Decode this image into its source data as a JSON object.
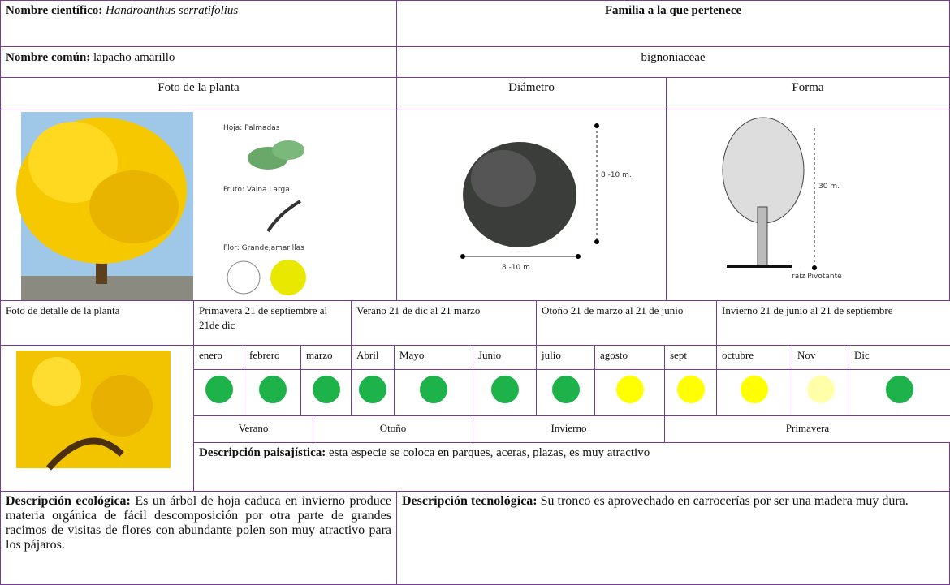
{
  "header": {
    "scientific_label": "Nombre científico:",
    "scientific_name": "Handroanthus serratifolius",
    "family_label": "Familia a la que pertenece",
    "common_label": "Nombre común:",
    "common_name": "lapacho  amarillo",
    "family": "bignoniaceae"
  },
  "sections": {
    "photo": "Foto de la planta",
    "diameter": "Diámetro",
    "shape": "Forma",
    "detail_photo": "Foto de detalle de la planta"
  },
  "photo_labels": {
    "leaf": "Hoja: Palmadas",
    "fruit": "Fruto: Vaina Larga",
    "flower": "Flor: Grande,amarillas"
  },
  "diameter_labels": {
    "height": "8 -10 m.",
    "width": "8 -10 m."
  },
  "shape_labels": {
    "height": "30 m.",
    "root": "raíz Pivotante"
  },
  "seasons": [
    "Primavera 21 de septiembre al 21de dic",
    "Verano 21 de dic al 21 marzo",
    "Otoño 21 de marzo al 21 de junio",
    "Invierno 21 de junio al 21 de septiembre"
  ],
  "months": [
    {
      "name": "enero",
      "color": "#1db34a"
    },
    {
      "name": "febrero",
      "color": "#1db34a"
    },
    {
      "name": "marzo",
      "color": "#1db34a"
    },
    {
      "name": "Abril",
      "color": "#1db34a"
    },
    {
      "name": "Mayo",
      "color": "#1db34a"
    },
    {
      "name": "Junio",
      "color": "#1db34a"
    },
    {
      "name": "julio",
      "color": "#1db34a"
    },
    {
      "name": "agosto",
      "color": "#ffff00"
    },
    {
      "name": "sept",
      "color": "#ffff00"
    },
    {
      "name": "octubre",
      "color": "#ffff00"
    },
    {
      "name": "Nov",
      "color": "#ffffaa"
    },
    {
      "name": "Dic",
      "color": "#1db34a"
    }
  ],
  "season_names": [
    "Verano",
    "Otoño",
    "Invierno",
    "Primavera"
  ],
  "landscape": {
    "label": "Descripción paisajística:",
    "text": "esta especie se coloca en parques, aceras, plazas, es muy atractivo"
  },
  "ecological": {
    "label": "Descripción ecológica:",
    "text": "Es un árbol de hoja caduca en invierno produce materia orgánica de fácil descomposición por otra parte de grandes racimos de visitas de flores con abundante polen son muy atractivo para los pájaros."
  },
  "technological": {
    "label": "Descripción tecnológica:",
    "text": "Su tronco es aprovechado en carrocerías por ser una madera muy dura."
  }
}
